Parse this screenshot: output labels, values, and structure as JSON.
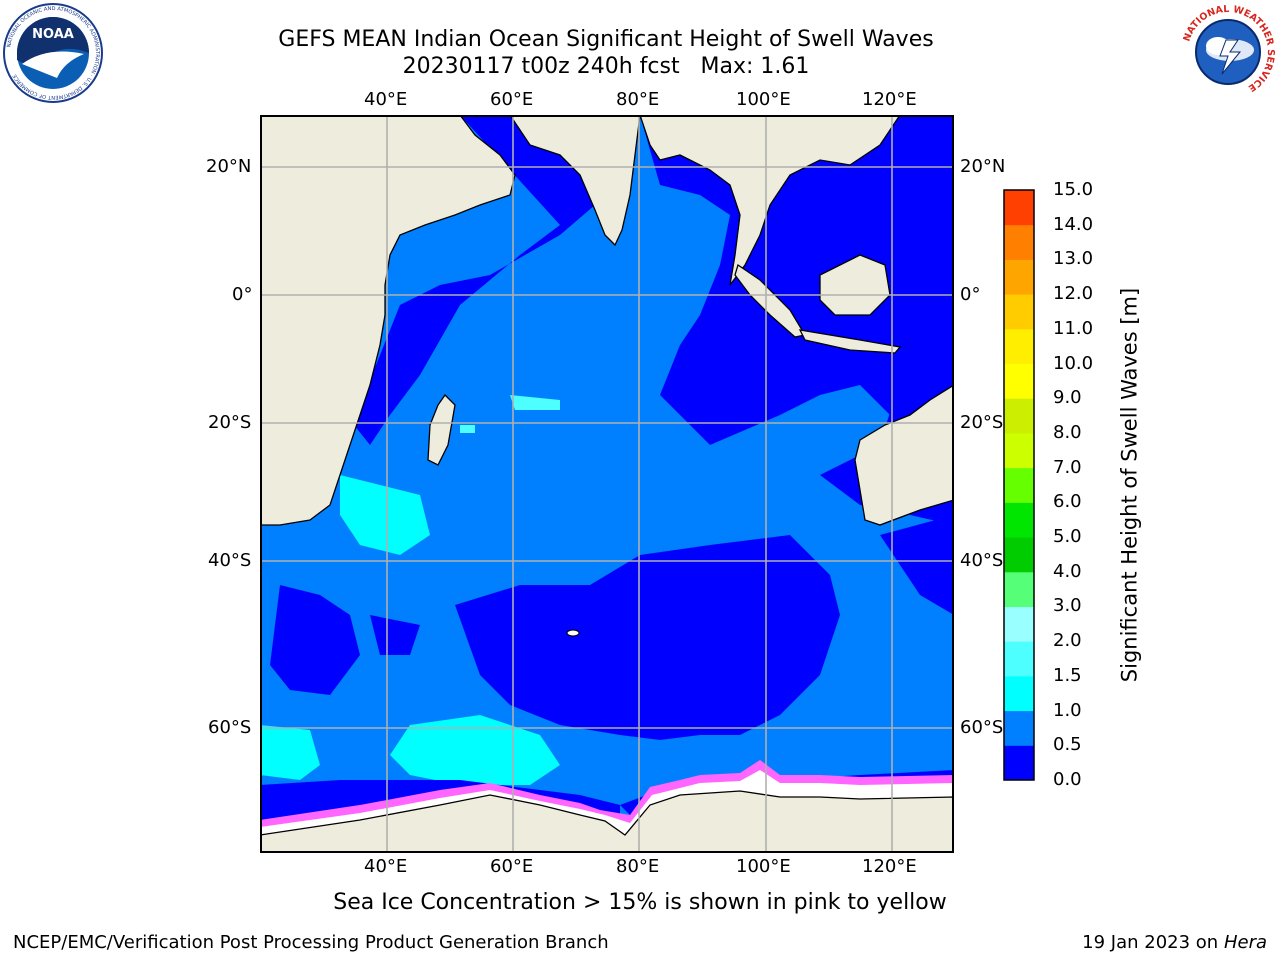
{
  "title_line1": "GEFS MEAN Indian Ocean Significant Height of Swell Waves",
  "title_line2": "20230117 t00z 240h fcst   Max: 1.61",
  "logos": {
    "left": {
      "icon": "noaa-logo-icon",
      "text": "NOAA",
      "ring_text": "NATIONAL OCEANIC AND ATMOSPHERIC ADMINISTRATION · U.S. DEPARTMENT OF COMMERCE"
    },
    "right": {
      "icon": "nws-logo-icon",
      "ring_text": "NATIONAL WEATHER SERVICE"
    }
  },
  "map": {
    "lon_ticks": [
      "40°E",
      "60°E",
      "80°E",
      "100°E",
      "120°E"
    ],
    "lat_ticks": [
      "20°N",
      "0°",
      "20°S",
      "40°S",
      "60°S"
    ],
    "colors": {
      "ocean_deep": "#0000ff",
      "ocean_mid": "#0080ff",
      "ocean_cyan": "#00ffff",
      "ocean_light_cyan": "#66ffff",
      "land": "#eeecdc",
      "ice_edge": "#ff66ff",
      "grid": "#b0b0b0"
    }
  },
  "colorbar": {
    "title": "Significant Height of Swell Waves [m]",
    "labels": [
      "15.0",
      "14.0",
      "13.0",
      "12.0",
      "11.0",
      "10.0",
      "9.0",
      "8.0",
      "7.0",
      "6.0",
      "5.0",
      "4.0",
      "3.0",
      "2.0",
      "1.5",
      "1.0",
      "0.5",
      "0.0"
    ],
    "colors": [
      "#0000ff",
      "#0080ff",
      "#00ffff",
      "#4dffff",
      "#99ffff",
      "#55ff77",
      "#00cc00",
      "#00e600",
      "#66ff00",
      "#ccff00",
      "#ccee00",
      "#ffff00",
      "#ffee00",
      "#ffcc00",
      "#ffa500",
      "#ff7f00",
      "#ff4000",
      "#ff0000"
    ]
  },
  "note": "Sea Ice Concentration > 15% is shown in pink to yellow",
  "footer": {
    "left": "NCEP/EMC/Verification Post Processing Product Generation Branch",
    "right_prefix": "19 Jan 2023 on ",
    "right_host": "Hera"
  }
}
